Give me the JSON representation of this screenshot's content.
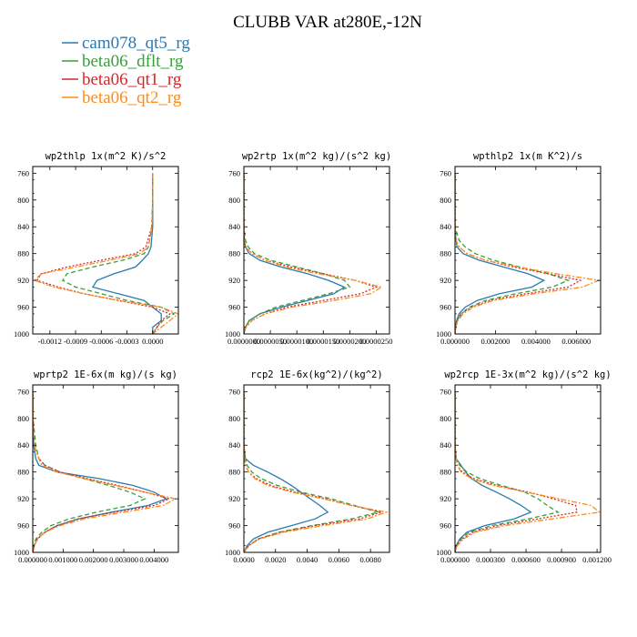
{
  "title": "CLUBB VAR at280E,-12N",
  "legend": [
    {
      "name": "cam078_qt5_rg",
      "color": "#2a7ab0",
      "dash": "solid"
    },
    {
      "name": "beta06_dflt_rg",
      "color": "#3a9e3a",
      "dash": "dash"
    },
    {
      "name": "beta06_qt1_rg",
      "color": "#d62728",
      "dash": "dot"
    },
    {
      "name": "beta06_qt2_rg",
      "color": "#ff8c1a",
      "dash": "dashdot"
    }
  ],
  "chart_data": [
    {
      "type": "line",
      "title": "wp2thlp  1x(m^2 K)/s^2",
      "xlim": [
        -0.0014,
        0.0003
      ],
      "ylim": [
        1000,
        750
      ],
      "y_ticks": [
        "760",
        "800",
        "840",
        "880",
        "920",
        "960",
        "1000"
      ],
      "x_ticks": [
        {
          "v": -0.0012,
          "label": "-0.0012"
        },
        {
          "v": -0.0009,
          "label": "-0.0009"
        },
        {
          "v": -0.0006,
          "label": "-0.0006"
        },
        {
          "v": -0.0003,
          "label": "-0.0003"
        },
        {
          "v": 0.0,
          "label": "0.0000"
        }
      ],
      "y": [
        760,
        800,
        840,
        870,
        880,
        890,
        900,
        910,
        920,
        930,
        940,
        950,
        960,
        970,
        980,
        990,
        1000
      ],
      "series": [
        {
          "name": "cam078_qt5_rg",
          "values": [
            0.0,
            0.0,
            0.0,
            -2e-05,
            -5e-05,
            -0.00012,
            -0.0002,
            -0.00045,
            -0.00065,
            -0.0007,
            -0.0004,
            -0.0001,
            0.0,
            0.0001,
            0.0001,
            0.0,
            0.0
          ]
        },
        {
          "name": "beta06_dflt_rg",
          "values": [
            0.0,
            0.0,
            -1e-05,
            -5e-05,
            -0.0001,
            -0.00035,
            -0.0007,
            -0.001,
            -0.00105,
            -0.0009,
            -0.0006,
            -0.0003,
            0.0001,
            0.00025,
            0.00012,
            5e-05,
            0.0
          ]
        },
        {
          "name": "beta06_qt1_rg",
          "values": [
            0.0,
            0.0,
            -1e-05,
            -8e-05,
            -0.0002,
            -0.0006,
            -0.001,
            -0.0013,
            -0.00135,
            -0.0011,
            -0.0008,
            -0.0004,
            0.0,
            0.0002,
            0.0001,
            5e-05,
            0.0
          ]
        },
        {
          "name": "beta06_qt2_rg",
          "values": [
            0.0,
            0.0,
            -1e-05,
            -5e-05,
            -0.00015,
            -0.0005,
            -0.0009,
            -0.0013,
            -0.00138,
            -0.00115,
            -0.0008,
            -0.0004,
            0.0001,
            0.0003,
            0.0002,
            0.0001,
            0.0
          ]
        }
      ]
    },
    {
      "type": "line",
      "title": "wp2rtp  1x(m^2 kg)/(s^2 kg)",
      "xlim": [
        0,
        2.75e-05
      ],
      "ylim": [
        1000,
        750
      ],
      "y_ticks": [
        "760",
        "800",
        "840",
        "880",
        "920",
        "960",
        "1000"
      ],
      "x_ticks": [
        {
          "v": 0.0,
          "label": "0.0000000"
        },
        {
          "v": 5e-06,
          "label": "0.0000050"
        },
        {
          "v": 1e-05,
          "label": "0.0000100"
        },
        {
          "v": 1.5e-05,
          "label": "0.0000150"
        },
        {
          "v": 2e-05,
          "label": "0.0000200"
        },
        {
          "v": 2.5e-05,
          "label": "0.0000250"
        }
      ],
      "y": [
        760,
        800,
        840,
        860,
        870,
        880,
        890,
        900,
        910,
        920,
        930,
        940,
        950,
        960,
        970,
        980,
        990,
        1000
      ],
      "series": [
        {
          "name": "cam078_qt5_rg",
          "values": [
            0,
            0,
            0,
            1e-07,
            3e-07,
            1e-06,
            3e-06,
            7e-06,
            1.2e-05,
            1.6e-05,
            1.9e-05,
            1.7e-05,
            1.2e-05,
            7e-06,
            3e-06,
            1e-06,
            3e-07,
            0
          ]
        },
        {
          "name": "beta06_dflt_rg",
          "values": [
            0,
            0,
            0,
            3e-07,
            8e-07,
            2e-06,
            5e-06,
            1e-05,
            1.5e-05,
            1.9e-05,
            2e-05,
            1.6e-05,
            1.1e-05,
            6e-06,
            3e-06,
            1e-06,
            3e-07,
            0
          ]
        },
        {
          "name": "beta06_qt1_rg",
          "values": [
            0,
            0,
            0,
            1e-07,
            4e-07,
            1.5e-06,
            4e-06,
            9e-06,
            1.5e-05,
            2.1e-05,
            2.5e-05,
            2.2e-05,
            1.5e-05,
            8e-06,
            4e-06,
            1.5e-06,
            4e-07,
            0
          ]
        },
        {
          "name": "beta06_qt2_rg",
          "values": [
            0,
            0,
            0,
            1e-07,
            4e-07,
            1.5e-06,
            4e-06,
            8e-06,
            1.4e-05,
            2.1e-05,
            2.6e-05,
            2.4e-05,
            1.7e-05,
            9e-06,
            4e-06,
            1.5e-06,
            4e-07,
            0
          ]
        }
      ]
    },
    {
      "type": "line",
      "title": "wpthlp2  1x(m K^2)/s",
      "xlim": [
        0,
        0.0072
      ],
      "ylim": [
        1000,
        750
      ],
      "y_ticks": [
        "760",
        "800",
        "840",
        "880",
        "920",
        "960",
        "1000"
      ],
      "x_ticks": [
        {
          "v": 0.0,
          "label": "0.000000"
        },
        {
          "v": 0.002,
          "label": "0.002000"
        },
        {
          "v": 0.004,
          "label": "0.004000"
        },
        {
          "v": 0.006,
          "label": "0.006000"
        }
      ],
      "y": [
        760,
        800,
        840,
        860,
        870,
        880,
        890,
        900,
        910,
        920,
        930,
        940,
        950,
        960,
        970,
        980,
        990,
        1000
      ],
      "series": [
        {
          "name": "cam078_qt5_rg",
          "values": [
            0,
            0,
            0,
            5e-05,
            0.0001,
            0.0004,
            0.0012,
            0.0024,
            0.0036,
            0.0044,
            0.0038,
            0.0022,
            0.0011,
            0.0005,
            0.0002,
            8e-05,
            2e-05,
            0
          ]
        },
        {
          "name": "beta06_dflt_rg",
          "values": [
            0,
            0,
            0,
            0.0002,
            0.0005,
            0.001,
            0.0019,
            0.0032,
            0.0046,
            0.0056,
            0.0048,
            0.003,
            0.0015,
            0.0007,
            0.0003,
            0.0001,
            3e-05,
            0
          ]
        },
        {
          "name": "beta06_qt1_rg",
          "values": [
            0,
            0,
            0,
            5e-05,
            0.0002,
            0.0006,
            0.0015,
            0.0029,
            0.0046,
            0.0062,
            0.0056,
            0.0035,
            0.0017,
            0.0008,
            0.0003,
            0.0001,
            3e-05,
            0
          ]
        },
        {
          "name": "beta06_qt2_rg",
          "values": [
            0,
            0,
            0,
            5e-05,
            0.0002,
            0.0006,
            0.0015,
            0.0031,
            0.005,
            0.0071,
            0.0063,
            0.0039,
            0.0019,
            0.0009,
            0.0004,
            0.00015,
            4e-05,
            0
          ]
        }
      ]
    },
    {
      "type": "line",
      "title": "wprtp2  1E-6x(m kg)/(s kg)",
      "xlim": [
        0,
        0.0048
      ],
      "ylim": [
        1000,
        750
      ],
      "y_ticks": [
        "760",
        "800",
        "840",
        "880",
        "920",
        "960",
        "1000"
      ],
      "x_ticks": [
        {
          "v": 0.0,
          "label": "0.000000"
        },
        {
          "v": 0.001,
          "label": "0.001000"
        },
        {
          "v": 0.002,
          "label": "0.002000"
        },
        {
          "v": 0.003,
          "label": "0.003000"
        },
        {
          "v": 0.004,
          "label": "0.004000"
        }
      ],
      "y": [
        760,
        800,
        840,
        860,
        870,
        880,
        890,
        900,
        910,
        920,
        930,
        940,
        950,
        960,
        970,
        980,
        990,
        1000
      ],
      "series": [
        {
          "name": "cam078_qt5_rg",
          "values": [
            0,
            0,
            3e-05,
            0.0001,
            0.0002,
            0.0008,
            0.0022,
            0.0033,
            0.004,
            0.0044,
            0.0038,
            0.0026,
            0.0015,
            0.0008,
            0.0004,
            0.00015,
            5e-05,
            0
          ]
        },
        {
          "name": "beta06_dflt_rg",
          "values": [
            0,
            1e-05,
            0.0001,
            0.0002,
            0.0004,
            0.0009,
            0.0017,
            0.0025,
            0.0032,
            0.0037,
            0.0032,
            0.0021,
            0.0012,
            0.0006,
            0.0003,
            0.0001,
            3e-05,
            0
          ]
        },
        {
          "name": "beta06_qt1_rg",
          "values": [
            0,
            1e-05,
            5e-05,
            0.0002,
            0.0004,
            0.0009,
            0.0018,
            0.0028,
            0.0037,
            0.0045,
            0.004,
            0.0027,
            0.0015,
            0.0008,
            0.0004,
            0.00015,
            5e-05,
            0
          ]
        },
        {
          "name": "beta06_qt2_rg",
          "values": [
            0,
            1e-05,
            5e-05,
            0.0002,
            0.0003,
            0.0008,
            0.0017,
            0.0027,
            0.0037,
            0.0047,
            0.0043,
            0.003,
            0.0017,
            0.0009,
            0.0004,
            0.00015,
            5e-05,
            0
          ]
        }
      ]
    },
    {
      "type": "line",
      "title": "rcp2  1E-6x(kg^2)/(kg^2)",
      "xlim": [
        0,
        0.0092
      ],
      "ylim": [
        1000,
        750
      ],
      "y_ticks": [
        "760",
        "800",
        "840",
        "880",
        "920",
        "960",
        "1000"
      ],
      "x_ticks": [
        {
          "v": 0.0,
          "label": "0.0000"
        },
        {
          "v": 0.002,
          "label": "0.0020"
        },
        {
          "v": 0.004,
          "label": "0.0040"
        },
        {
          "v": 0.006,
          "label": "0.0060"
        },
        {
          "v": 0.008,
          "label": "0.0080"
        }
      ],
      "y": [
        760,
        800,
        840,
        860,
        870,
        880,
        890,
        900,
        910,
        920,
        930,
        940,
        950,
        960,
        970,
        980,
        990,
        1000
      ],
      "series": [
        {
          "name": "cam078_qt5_rg",
          "values": [
            0,
            0,
            0,
            0.0001,
            0.0006,
            0.0015,
            0.0023,
            0.003,
            0.0036,
            0.0042,
            0.0048,
            0.0053,
            0.0045,
            0.003,
            0.0015,
            0.0006,
            0.0002,
            0
          ]
        },
        {
          "name": "beta06_dflt_rg",
          "values": [
            0,
            0,
            0,
            0.0001,
            0.0002,
            0.0005,
            0.0011,
            0.0021,
            0.0036,
            0.0055,
            0.007,
            0.0085,
            0.0068,
            0.0043,
            0.0022,
            0.0009,
            0.0003,
            0
          ]
        },
        {
          "name": "beta06_qt1_rg",
          "values": [
            0,
            0,
            0,
            5e-05,
            0.0001,
            0.0003,
            0.0008,
            0.0017,
            0.0032,
            0.0052,
            0.0068,
            0.0087,
            0.0073,
            0.0045,
            0.0023,
            0.0009,
            0.0003,
            0
          ]
        },
        {
          "name": "beta06_qt2_rg",
          "values": [
            0,
            0,
            0,
            5e-05,
            0.0001,
            0.0003,
            0.0007,
            0.0015,
            0.003,
            0.005,
            0.0068,
            0.009,
            0.0078,
            0.005,
            0.0025,
            0.001,
            0.0003,
            0
          ]
        }
      ]
    },
    {
      "type": "line",
      "title": "wp2rcp  1E-3x(m^2 kg)/(s^2 kg)",
      "xlim": [
        0,
        0.00123
      ],
      "ylim": [
        1000,
        750
      ],
      "y_ticks": [
        "760",
        "800",
        "840",
        "880",
        "920",
        "960",
        "1000"
      ],
      "x_ticks": [
        {
          "v": 0.0,
          "label": "0.000000"
        },
        {
          "v": 0.0003,
          "label": "0.000300"
        },
        {
          "v": 0.0006,
          "label": "0.000600"
        },
        {
          "v": 0.0009,
          "label": "0.000900"
        },
        {
          "v": 0.0012,
          "label": "0.001200"
        }
      ],
      "y": [
        760,
        800,
        840,
        860,
        870,
        880,
        890,
        900,
        910,
        920,
        930,
        940,
        950,
        960,
        970,
        980,
        990,
        1000
      ],
      "series": [
        {
          "name": "cam078_qt5_rg",
          "values": [
            0,
            0,
            0,
            1e-05,
            5e-05,
            9e-05,
            0.00014,
            0.00023,
            0.00035,
            0.00046,
            0.00056,
            0.00064,
            0.0005,
            0.00025,
            0.0001,
            4e-05,
            1e-05,
            0
          ]
        },
        {
          "name": "beta06_dflt_rg",
          "values": [
            0,
            0,
            0,
            1e-05,
            4e-05,
            0.0001,
            0.00021,
            0.00039,
            0.00059,
            0.0007,
            0.00078,
            0.00087,
            0.00062,
            0.00031,
            0.00012,
            5e-05,
            1e-05,
            0
          ]
        },
        {
          "name": "beta06_qt1_rg",
          "values": [
            0,
            0,
            0,
            1e-05,
            2e-05,
            6e-05,
            0.00016,
            0.00035,
            0.00062,
            0.00083,
            0.00102,
            0.00103,
            0.0007,
            0.00036,
            0.00015,
            6e-05,
            1e-05,
            0
          ]
        },
        {
          "name": "beta06_qt2_rg",
          "values": [
            0,
            0,
            0,
            1e-05,
            2e-05,
            5e-05,
            0.00014,
            0.00032,
            0.0006,
            0.00088,
            0.00115,
            0.00122,
            0.00082,
            0.00042,
            0.00017,
            7e-05,
            2e-05,
            0
          ]
        }
      ]
    }
  ]
}
